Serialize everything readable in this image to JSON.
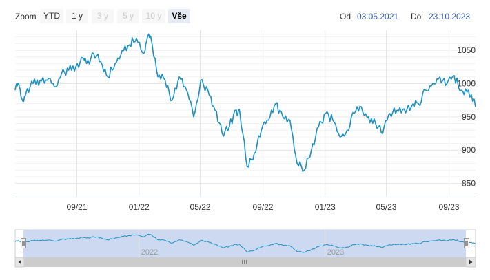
{
  "toolbar": {
    "zoom_label": "Zoom",
    "buttons": [
      {
        "label": "YTD",
        "state": "normal"
      },
      {
        "label": "1 y",
        "state": "normal"
      },
      {
        "label": "3 y",
        "state": "disabled"
      },
      {
        "label": "5 y",
        "state": "disabled"
      },
      {
        "label": "10 y",
        "state": "disabled"
      },
      {
        "label": "Vše",
        "state": "active"
      }
    ],
    "from_label": "Od",
    "from_value": "03.05.2021",
    "to_label": "Do",
    "to_value": "23.10.2023"
  },
  "colors": {
    "line": "#1a90c4",
    "navigator_line": "#1a90c4",
    "navigator_mask": "#c7d5ee",
    "grid": "#e6e6e6",
    "active_button": "#e6ebf5",
    "date_link": "#335cad"
  },
  "chart_data": {
    "type": "line",
    "y_range": [
      830,
      1080
    ],
    "y_ticks": [
      "850",
      "900",
      "950",
      "1000",
      "1050"
    ],
    "x_range": [
      "2021-05-03",
      "2023-10-23"
    ],
    "x_ticks": [
      "09/21",
      "01/22",
      "05/22",
      "09/22",
      "01/23",
      "05/23",
      "09/23"
    ],
    "navigator_ticks": [
      "2022",
      "2023"
    ],
    "series": [
      {
        "points": [
          [
            "2021-05-03",
            990
          ],
          [
            "2021-05-10",
            1000
          ],
          [
            "2021-05-17",
            975
          ],
          [
            "2021-05-24",
            985
          ],
          [
            "2021-06-07",
            1000
          ],
          [
            "2021-06-21",
            1005
          ],
          [
            "2021-07-05",
            1005
          ],
          [
            "2021-07-19",
            995
          ],
          [
            "2021-08-02",
            1015
          ],
          [
            "2021-08-16",
            1020
          ],
          [
            "2021-08-30",
            1025
          ],
          [
            "2021-09-13",
            1038
          ],
          [
            "2021-09-20",
            1030
          ],
          [
            "2021-10-04",
            1045
          ],
          [
            "2021-10-18",
            1033
          ],
          [
            "2021-11-01",
            1010
          ],
          [
            "2021-11-15",
            1030
          ],
          [
            "2021-11-29",
            1050
          ],
          [
            "2021-12-13",
            1058
          ],
          [
            "2021-12-27",
            1068
          ],
          [
            "2022-01-10",
            1045
          ],
          [
            "2022-01-17",
            1068
          ],
          [
            "2022-01-24",
            1070
          ],
          [
            "2022-02-07",
            1010
          ],
          [
            "2022-02-21",
            1005
          ],
          [
            "2022-03-07",
            975
          ],
          [
            "2022-03-21",
            1010
          ],
          [
            "2022-04-04",
            990
          ],
          [
            "2022-04-18",
            950
          ],
          [
            "2022-05-02",
            1005
          ],
          [
            "2022-05-16",
            990
          ],
          [
            "2022-05-30",
            960
          ],
          [
            "2022-06-13",
            925
          ],
          [
            "2022-06-27",
            935
          ],
          [
            "2022-07-11",
            960
          ],
          [
            "2022-07-18",
            955
          ],
          [
            "2022-08-01",
            875
          ],
          [
            "2022-08-15",
            895
          ],
          [
            "2022-08-29",
            930
          ],
          [
            "2022-09-12",
            945
          ],
          [
            "2022-09-26",
            970
          ],
          [
            "2022-10-10",
            950
          ],
          [
            "2022-10-24",
            945
          ],
          [
            "2022-11-07",
            880
          ],
          [
            "2022-11-21",
            870
          ],
          [
            "2022-12-05",
            900
          ],
          [
            "2022-12-19",
            935
          ],
          [
            "2023-01-02",
            955
          ],
          [
            "2023-01-16",
            945
          ],
          [
            "2023-01-30",
            920
          ],
          [
            "2023-02-13",
            930
          ],
          [
            "2023-02-27",
            955
          ],
          [
            "2023-03-13",
            965
          ],
          [
            "2023-03-27",
            950
          ],
          [
            "2023-04-10",
            940
          ],
          [
            "2023-04-24",
            925
          ],
          [
            "2023-05-08",
            955
          ],
          [
            "2023-05-22",
            960
          ],
          [
            "2023-06-05",
            962
          ],
          [
            "2023-06-19",
            965
          ],
          [
            "2023-07-03",
            970
          ],
          [
            "2023-07-17",
            990
          ],
          [
            "2023-07-31",
            1000
          ],
          [
            "2023-08-14",
            1010
          ],
          [
            "2023-08-28",
            1000
          ],
          [
            "2023-09-11",
            1012
          ],
          [
            "2023-09-25",
            990
          ],
          [
            "2023-10-09",
            990
          ],
          [
            "2023-10-23",
            965
          ]
        ]
      }
    ]
  }
}
